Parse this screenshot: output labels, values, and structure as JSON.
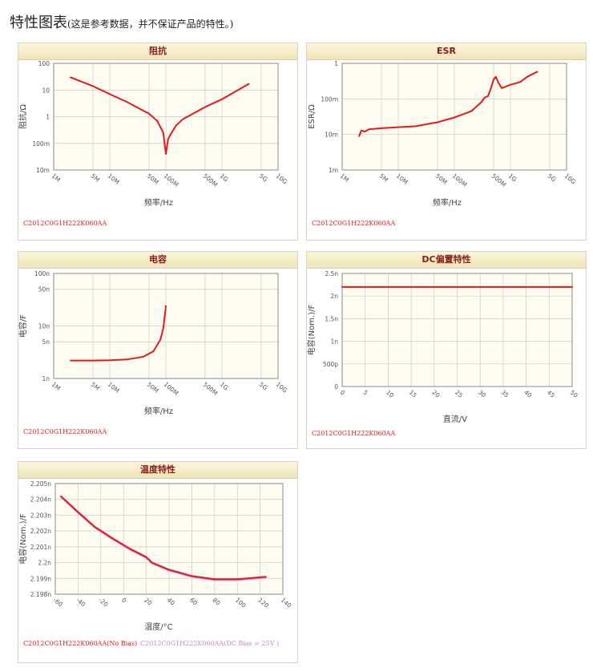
{
  "title": "特性图表",
  "subtitle": "(这是参考数据，并不保证产品的特性。)",
  "colors": {
    "red": "#e41a1a",
    "violet": "#d27fd8",
    "plot_bg": "#fffdf2",
    "grid": "#c9c9c9",
    "header_text": "#8b1a1a"
  },
  "chart_data": [
    {
      "id": "impedance",
      "type": "line",
      "title": "阻抗",
      "xlabel": "频率/Hz",
      "ylabel": "阻抗/Ω",
      "xscale": "log",
      "yscale": "log",
      "xlim": [
        1000000,
        10000000000
      ],
      "ylim": [
        0.01,
        100
      ],
      "xticks": [
        1000000,
        5000000,
        10000000,
        50000000,
        100000000,
        500000000,
        1000000000,
        5000000000,
        10000000000
      ],
      "xticklabels": [
        "1M",
        "5M",
        "10M",
        "50M",
        "100M",
        "500M",
        "1G",
        "5G",
        "10G"
      ],
      "yticks": [
        0.01,
        0.1,
        1,
        10,
        100
      ],
      "yticklabels": [
        "10m",
        "100m",
        "1",
        "10",
        "100"
      ],
      "grid": true,
      "series": [
        {
          "name": "C2012C0G1H222K060AA",
          "color": "#e41a1a",
          "x": [
            2000000,
            5000000,
            10000000,
            20000000,
            50000000,
            70000000,
            90000000,
            100000000,
            110000000,
            150000000,
            200000000,
            500000000,
            1000000000,
            3000000000
          ],
          "y": [
            30,
            14,
            7,
            3.6,
            1.3,
            0.7,
            0.25,
            0.04,
            0.15,
            0.45,
            0.8,
            2.3,
            4.5,
            17
          ]
        }
      ],
      "legend": [
        "C2012C0G1H222K060AA"
      ]
    },
    {
      "id": "esr",
      "type": "line",
      "title": "ESR",
      "xlabel": "频率/Hz",
      "ylabel": "ESR/Ω",
      "xscale": "log",
      "yscale": "log",
      "xlim": [
        1000000,
        10000000000
      ],
      "ylim": [
        0.001,
        1
      ],
      "xticks": [
        1000000,
        5000000,
        10000000,
        50000000,
        100000000,
        500000000,
        1000000000,
        5000000000,
        10000000000
      ],
      "xticklabels": [
        "1M",
        "5M",
        "10M",
        "50M",
        "100M",
        "500M",
        "1G",
        "5G",
        "10G"
      ],
      "yticks": [
        0.001,
        0.01,
        0.1,
        1
      ],
      "yticklabels": [
        "1m",
        "10m",
        "100m",
        "1"
      ],
      "grid": true,
      "series": [
        {
          "name": "C2012C0G1H222K060AA",
          "color": "#e41a1a",
          "x": [
            2000000,
            2200000,
            2500000,
            3000000,
            5000000,
            10000000,
            20000000,
            50000000,
            100000000,
            200000000,
            300000000,
            350000000,
            400000000,
            450000000,
            500000000,
            550000000,
            600000000,
            700000000,
            1000000000,
            1500000000,
            2000000000,
            3000000000
          ],
          "y": [
            0.009,
            0.013,
            0.012,
            0.014,
            0.015,
            0.016,
            0.017,
            0.022,
            0.03,
            0.045,
            0.08,
            0.11,
            0.12,
            0.2,
            0.35,
            0.42,
            0.3,
            0.2,
            0.25,
            0.3,
            0.42,
            0.58
          ]
        }
      ],
      "legend": [
        "C2012C0G1H222K060AA"
      ]
    },
    {
      "id": "capacitance",
      "type": "line",
      "title": "电容",
      "xlabel": "频率/Hz",
      "ylabel": "电容/F",
      "xscale": "log",
      "yscale": "log",
      "xlim": [
        1000000,
        10000000000
      ],
      "ylim": [
        1e-09,
        1e-07
      ],
      "xticks": [
        1000000,
        5000000,
        10000000,
        50000000,
        100000000,
        500000000,
        1000000000,
        5000000000,
        10000000000
      ],
      "xticklabels": [
        "1M",
        "5M",
        "10M",
        "50M",
        "100M",
        "500M",
        "1G",
        "5G",
        "10G"
      ],
      "yticks": [
        1e-09,
        5e-09,
        1e-08,
        5e-08,
        1e-07
      ],
      "yticklabels": [
        "1n",
        "5n",
        "10n",
        "50n",
        "100n"
      ],
      "grid": true,
      "series": [
        {
          "name": "C2012C0G1H222K060AA",
          "color": "#e41a1a",
          "x": [
            2000000,
            5000000,
            10000000,
            20000000,
            40000000,
            60000000,
            80000000,
            90000000,
            100000000
          ],
          "y": [
            2.2e-09,
            2.2e-09,
            2.22e-09,
            2.3e-09,
            2.6e-09,
            3.3e-09,
            5.5e-09,
            9e-09,
            2.4e-08
          ]
        }
      ],
      "legend": [
        "C2012C0G1H222K060AA"
      ]
    },
    {
      "id": "dc-bias",
      "type": "line",
      "title": "DC偏置特性",
      "xlabel": "直流/V",
      "ylabel": "电容(Nom.)/F",
      "xscale": "linear",
      "yscale": "linear",
      "xlim": [
        0,
        50
      ],
      "ylim": [
        0,
        2.5e-09
      ],
      "xticks": [
        0,
        5,
        10,
        15,
        20,
        25,
        30,
        35,
        40,
        45,
        50
      ],
      "xticklabels": [
        "0",
        "5",
        "10",
        "15",
        "20",
        "25",
        "30",
        "35",
        "40",
        "45",
        "50"
      ],
      "yticks": [
        0,
        5e-10,
        1e-09,
        1.5e-09,
        2e-09,
        2.5e-09
      ],
      "yticklabels": [
        "0",
        "500p",
        "1n",
        "1.5n",
        "2n",
        "2.5n"
      ],
      "grid": true,
      "series": [
        {
          "name": "C2012C0G1H222K060AA",
          "color": "#e41a1a",
          "x": [
            0,
            50
          ],
          "y": [
            2.2e-09,
            2.2e-09
          ]
        }
      ],
      "legend": [
        "C2012C0G1H222K060AA"
      ]
    },
    {
      "id": "temperature",
      "type": "line",
      "title": "温度特性",
      "xlabel": "温度/°C",
      "ylabel": "电容(Nom.)/F",
      "xscale": "linear",
      "yscale": "linear",
      "xlim": [
        -60,
        140
      ],
      "ylim": [
        2.198e-09,
        2.205e-09
      ],
      "xticks": [
        -60,
        -40,
        -20,
        0,
        20,
        40,
        60,
        80,
        100,
        120,
        140
      ],
      "xticklabels": [
        "-60",
        "-40",
        "-20",
        "0",
        "20",
        "40",
        "60",
        "80",
        "100",
        "120",
        "140"
      ],
      "yticks": [
        2.198e-09,
        2.199e-09,
        2.2e-09,
        2.201e-09,
        2.202e-09,
        2.203e-09,
        2.204e-09,
        2.205e-09
      ],
      "yticklabels": [
        "2.198n",
        "2.199n",
        "2.2n",
        "2.201n",
        "2.202n",
        "2.203n",
        "2.204n",
        "2.205n"
      ],
      "grid": true,
      "series": [
        {
          "name": "C2012C0G1H222K060AA(DC Bias = 25V )",
          "color": "#d27fd8",
          "x": [
            -55,
            -40,
            -25,
            -10,
            5,
            20,
            25,
            40,
            60,
            80,
            100,
            125
          ],
          "y": [
            2.20415e-09,
            2.20315e-09,
            2.2022e-09,
            2.2015e-09,
            2.20085e-09,
            2.2003e-09,
            2.19995e-09,
            2.1995e-09,
            2.1991e-09,
            2.1989e-09,
            2.1989e-09,
            2.19905e-09
          ]
        },
        {
          "name": "C2012C0G1H222K060AA(No Bias)",
          "color": "#e41a1a",
          "x": [
            -55,
            -40,
            -25,
            -10,
            5,
            20,
            25,
            40,
            60,
            80,
            100,
            125
          ],
          "y": [
            2.2042e-09,
            2.2032e-09,
            2.20225e-09,
            2.20155e-09,
            2.2009e-09,
            2.20035e-09,
            2.2e-09,
            2.19955e-09,
            2.19915e-09,
            2.19895e-09,
            2.19895e-09,
            2.1991e-09
          ]
        }
      ],
      "legend": [
        "C2012C0G1H222K060AA(No Bias)",
        "C2012C0G1H222K060AA(DC Bias = 25V )"
      ]
    }
  ]
}
